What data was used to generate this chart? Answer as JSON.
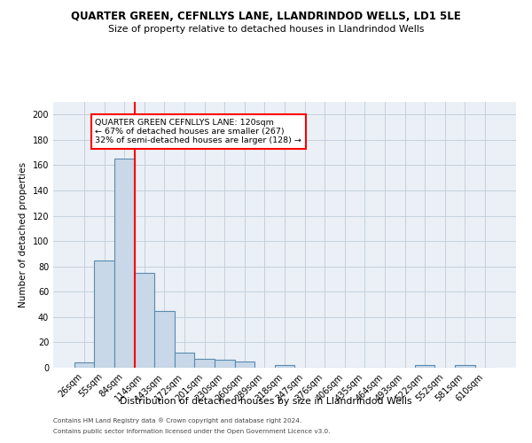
{
  "title": "QUARTER GREEN, CEFNLLYS LANE, LLANDRINDOD WELLS, LD1 5LE",
  "subtitle": "Size of property relative to detached houses in Llandrindod Wells",
  "xlabel": "Distribution of detached houses by size in Llandrindod Wells",
  "ylabel": "Number of detached properties",
  "footnote1": "Contains HM Land Registry data ® Crown copyright and database right 2024.",
  "footnote2": "Contains public sector information licensed under the Open Government Licence v3.0.",
  "bin_labels": [
    "26sqm",
    "55sqm",
    "84sqm",
    "114sqm",
    "143sqm",
    "172sqm",
    "201sqm",
    "230sqm",
    "260sqm",
    "289sqm",
    "318sqm",
    "347sqm",
    "376sqm",
    "406sqm",
    "435sqm",
    "464sqm",
    "493sqm",
    "522sqm",
    "552sqm",
    "581sqm",
    "610sqm"
  ],
  "bar_values": [
    4,
    85,
    165,
    75,
    45,
    12,
    7,
    6,
    5,
    0,
    2,
    0,
    0,
    0,
    0,
    0,
    0,
    2,
    0,
    2,
    0
  ],
  "bar_color": "#c8d8e8",
  "bar_edge_color": "#5a8ab0",
  "vline_color": "red",
  "vline_pos": 2.5,
  "annotation_text": "QUARTER GREEN CEFNLLYS LANE: 120sqm\n← 67% of detached houses are smaller (267)\n32% of semi-detached houses are larger (128) →",
  "annotation_box_color": "white",
  "annotation_box_edge": "red",
  "ylim": [
    0,
    210
  ],
  "yticks": [
    0,
    20,
    40,
    60,
    80,
    100,
    120,
    140,
    160,
    180,
    200
  ],
  "grid_color": "#c0ccd8",
  "bg_color": "#eaf0f6"
}
